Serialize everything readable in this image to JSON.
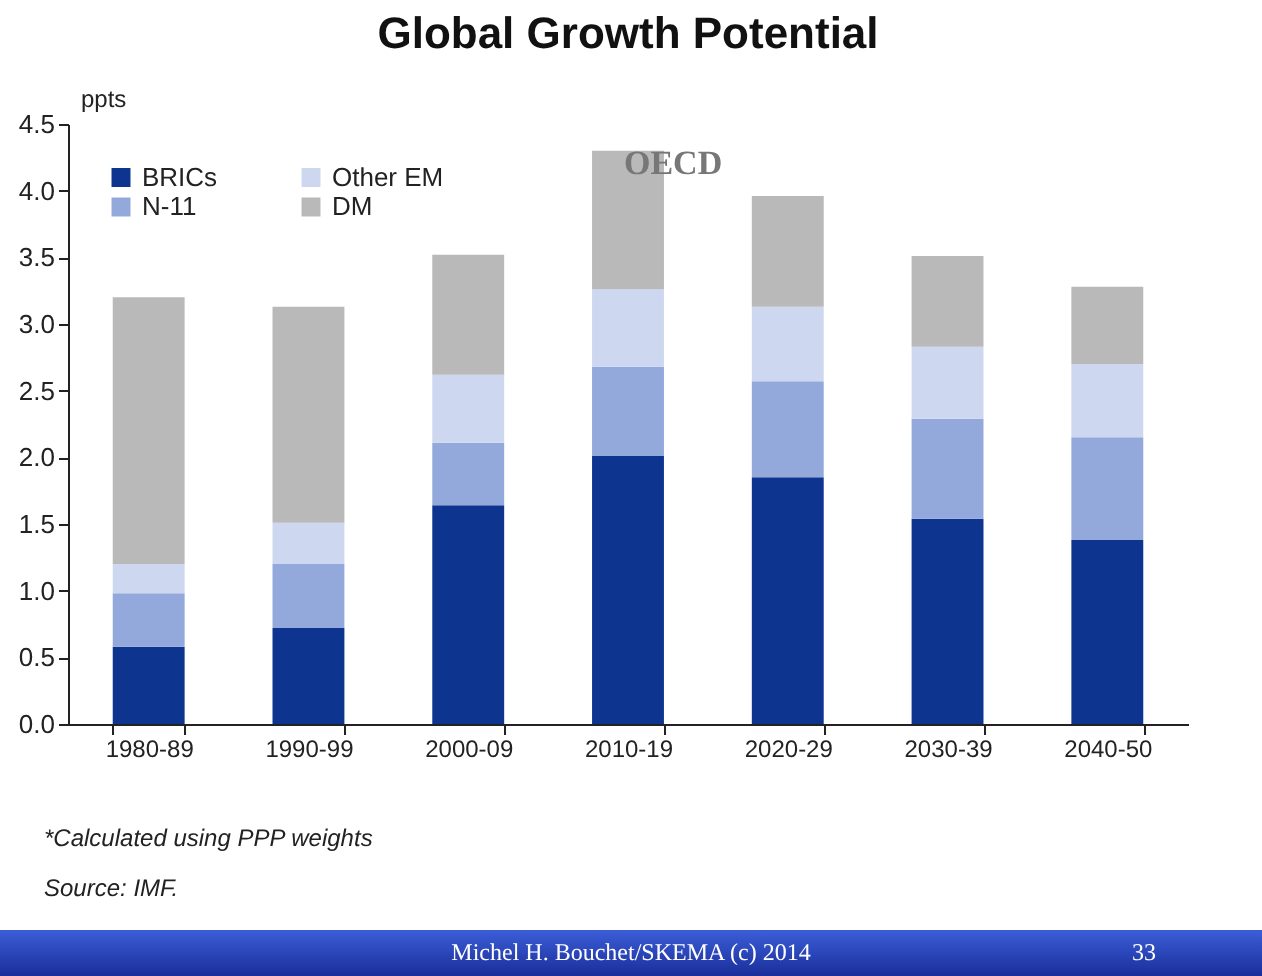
{
  "chart_data": {
    "type": "bar",
    "title": "Global Growth Potential",
    "ylabel": "ppts",
    "categories": [
      "1980-89",
      "1990-99",
      "2000-09",
      "2010-19",
      "2020-29",
      "2030-39",
      "2040-50"
    ],
    "stacked": true,
    "series": [
      {
        "name": "BRICs",
        "color": "#0d3590",
        "values": [
          0.58,
          0.72,
          1.64,
          2.01,
          1.85,
          1.54,
          1.38
        ]
      },
      {
        "name": "N-11",
        "color": "#93a9dc",
        "values": [
          0.4,
          0.48,
          0.47,
          0.67,
          0.72,
          0.75,
          0.77
        ]
      },
      {
        "name": "Other EM",
        "color": "#cdd7ef",
        "values": [
          0.22,
          0.31,
          0.51,
          0.58,
          0.56,
          0.54,
          0.55
        ]
      },
      {
        "name": "DM",
        "color": "#b9b9b9",
        "values": [
          2.0,
          1.62,
          0.9,
          1.04,
          0.83,
          0.68,
          0.58
        ]
      }
    ],
    "ylim": [
      0,
      4.5
    ],
    "yticks": [
      {
        "value": 0,
        "label": "0.0"
      },
      {
        "value": 0.5,
        "label": "0.5"
      },
      {
        "value": 1,
        "label": "1.0"
      },
      {
        "value": 1.5,
        "label": "1.5"
      },
      {
        "value": 2,
        "label": "2.0"
      },
      {
        "value": 2.5,
        "label": "2.5"
      },
      {
        "value": 3,
        "label": "3.0"
      },
      {
        "value": 3.5,
        "label": "3.5"
      },
      {
        "value": 4,
        "label": "4.0"
      },
      {
        "value": 4.5,
        "label": "4.5"
      }
    ],
    "grid": false,
    "legend": "top left",
    "annotations": [
      "OECD",
      "*Calculated using PPP weights",
      "Source: IMF.",
      "Michel H. Bouchet/SKEMA (c) 2014",
      "33"
    ]
  }
}
